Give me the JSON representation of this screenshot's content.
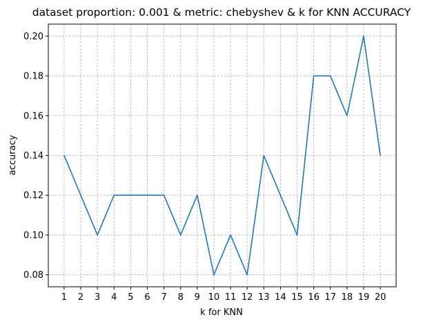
{
  "chart_data": {
    "type": "line",
    "title": "dataset proportion: 0.001 & metric: chebyshev & k for KNN ACCURACY",
    "xlabel": "k for KNN",
    "ylabel": "accuracy",
    "x": [
      1,
      2,
      3,
      4,
      5,
      6,
      7,
      8,
      9,
      10,
      11,
      12,
      13,
      14,
      15,
      16,
      17,
      18,
      19,
      20
    ],
    "x_tick_labels": [
      "1",
      "2",
      "3",
      "4",
      "5",
      "6",
      "7",
      "8",
      "9",
      "10",
      "11",
      "12",
      "13",
      "14",
      "15",
      "16",
      "17",
      "18",
      "19",
      "20"
    ],
    "series": [
      {
        "name": "accuracy",
        "color": "#1f77b4",
        "values": [
          0.14,
          0.12,
          0.1,
          0.12,
          0.12,
          0.12,
          0.12,
          0.1,
          0.12,
          0.08,
          0.1,
          0.08,
          0.14,
          0.12,
          0.1,
          0.18,
          0.18,
          0.16,
          0.2,
          0.14
        ]
      }
    ],
    "y_ticks": [
      0.08,
      0.1,
      0.12,
      0.14,
      0.16,
      0.18,
      0.2
    ],
    "y_tick_labels": [
      "0.08",
      "0.10",
      "0.12",
      "0.14",
      "0.16",
      "0.18",
      "0.20"
    ],
    "xlim": [
      0.05,
      20.95
    ],
    "ylim": [
      0.074,
      0.206
    ],
    "grid": true,
    "grid_color": "#b0b0b0"
  }
}
